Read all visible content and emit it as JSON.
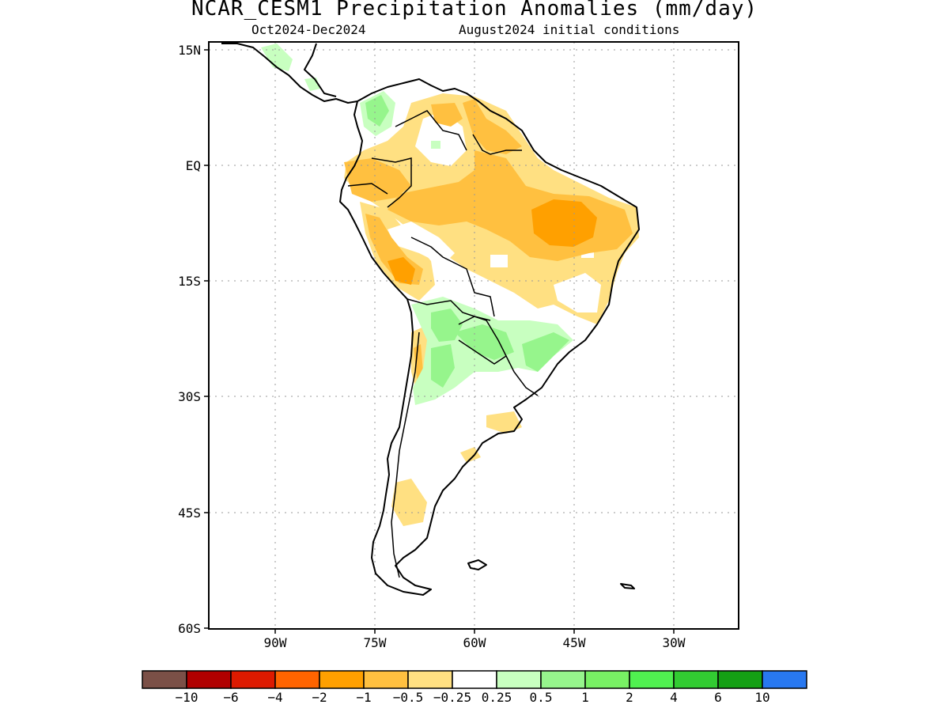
{
  "title": "NCAR_CESM1 Precipitation Anomalies (mm/day)",
  "period": "Oct2024-Dec2024",
  "initial_conditions": "August2024 initial conditions",
  "lat_labels": [
    "15N",
    "EQ",
    "15S",
    "30S",
    "45S",
    "60S"
  ],
  "lon_labels": [
    "90W",
    "75W",
    "60W",
    "45W",
    "30W"
  ],
  "legend": {
    "colors": [
      "#7b5047",
      "#b00000",
      "#dd1a00",
      "#ff6400",
      "#ffa000",
      "#ffc040",
      "#ffe082",
      "#ffffff",
      "#c8ffc0",
      "#96f58c",
      "#78f064",
      "#50f050",
      "#32cc32",
      "#14a014",
      "#2878f0"
    ],
    "labels": [
      "-10",
      "-6",
      "-4",
      "-2",
      "-1",
      "-0.5",
      "-0.25",
      "0.25",
      "0.5",
      "1",
      "2",
      "4",
      "6",
      "10"
    ]
  },
  "map": {
    "lat_range": [
      -60,
      17
    ],
    "lon_range": [
      -100,
      -20
    ],
    "grid": true
  }
}
